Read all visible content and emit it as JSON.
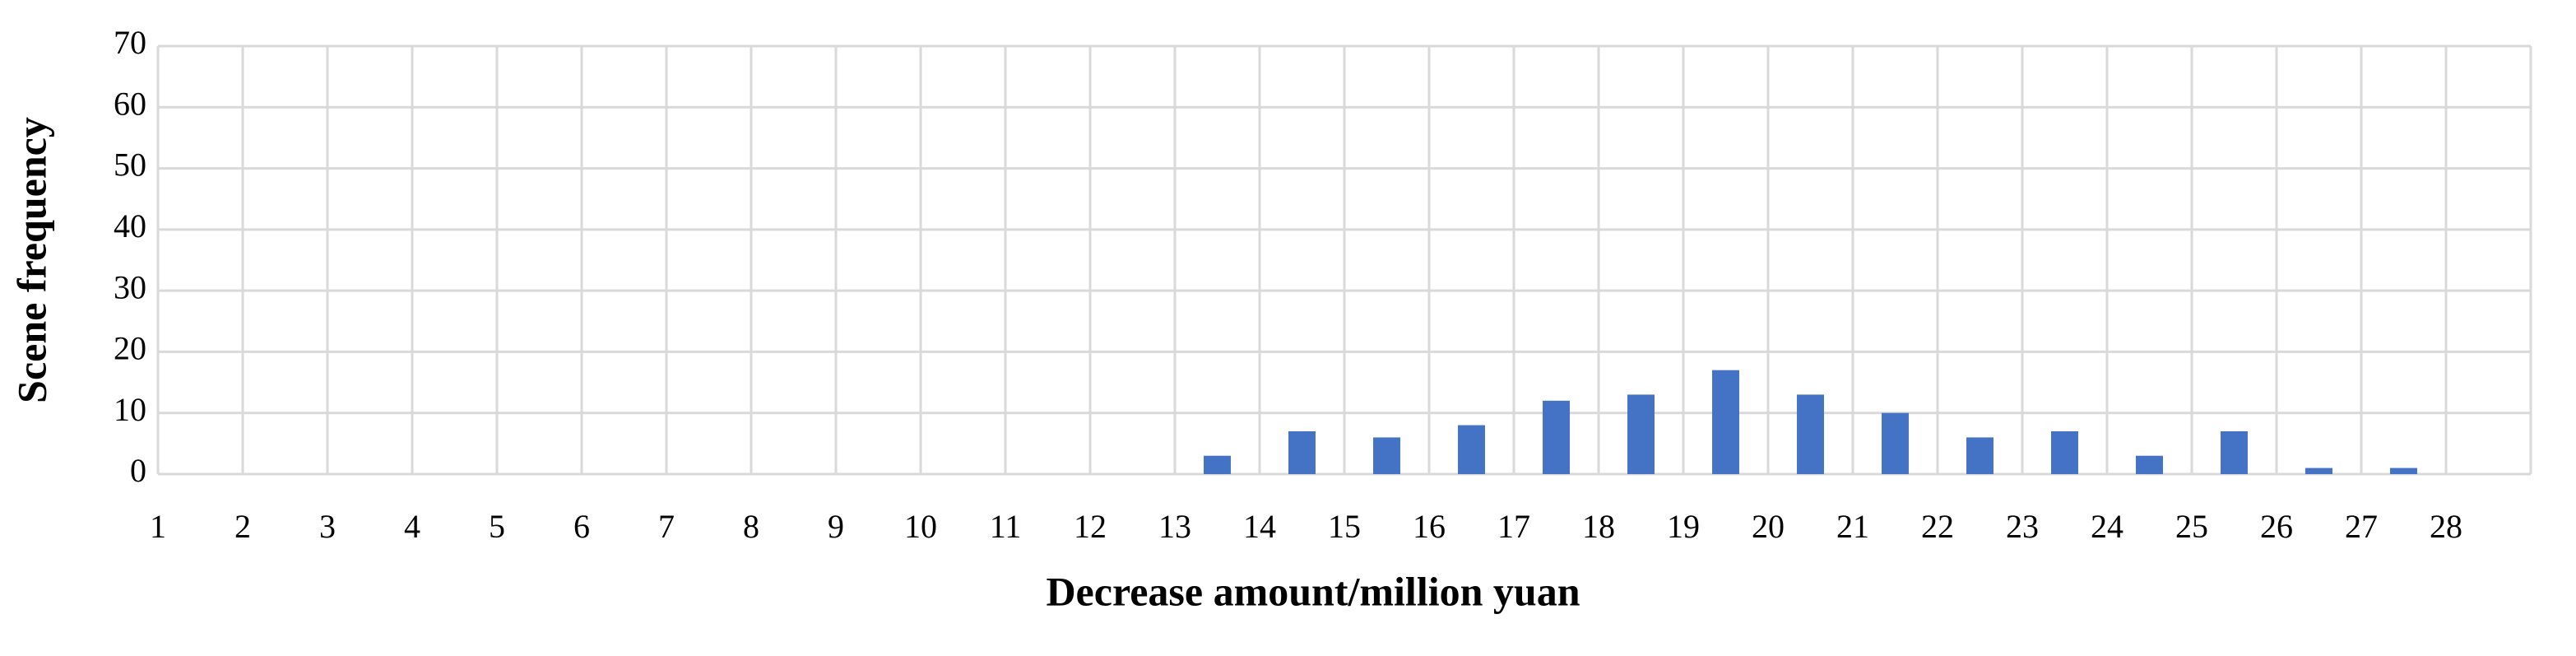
{
  "chart_data": {
    "type": "bar",
    "x_label": "Decrease amount/million yuan",
    "y_label": "Scene frequency",
    "categories": [
      "1",
      "2",
      "3",
      "4",
      "5",
      "6",
      "7",
      "8",
      "9",
      "10",
      "11",
      "12",
      "13",
      "14",
      "15",
      "16",
      "17",
      "18",
      "19",
      "20",
      "21",
      "22",
      "23",
      "24",
      "25",
      "26",
      "27",
      "28"
    ],
    "values": [
      0,
      0,
      0,
      0,
      0,
      0,
      0,
      0,
      0,
      0,
      0,
      0,
      3,
      7,
      6,
      8,
      12,
      13,
      17,
      13,
      10,
      6,
      7,
      3,
      7,
      1,
      1,
      0
    ],
    "color": "#4472c4",
    "ylim": [
      0,
      70
    ],
    "yticks": [
      0,
      10,
      20,
      30,
      40,
      50,
      60,
      70
    ],
    "grid": true
  }
}
